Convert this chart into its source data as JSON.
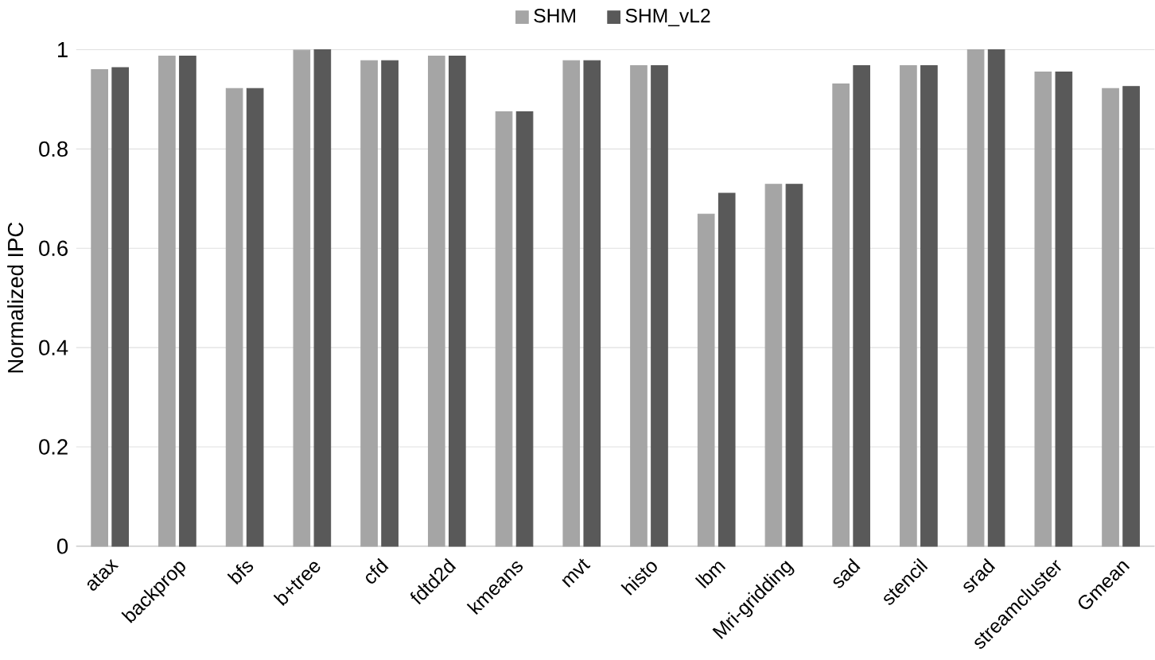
{
  "chart_data": {
    "type": "bar",
    "ylabel": "Normalized IPC",
    "categories": [
      "atax",
      "backprop",
      "bfs",
      "b+tree",
      "cfd",
      "fdtd2d",
      "kmeans",
      "mvt",
      "histo",
      "lbm",
      "Mri-gridding",
      "sad",
      "stencil",
      "srad",
      "streamcluster",
      "Gmean"
    ],
    "series": [
      {
        "name": "SHM",
        "color": "#a5a5a5",
        "values": [
          0.96,
          0.987,
          0.922,
          0.999,
          0.978,
          0.987,
          0.875,
          0.978,
          0.968,
          0.669,
          0.729,
          0.931,
          0.968,
          1.0,
          0.955,
          0.922
        ]
      },
      {
        "name": "SHM_vL2",
        "color": "#595959",
        "values": [
          0.964,
          0.987,
          0.922,
          1.0,
          0.978,
          0.987,
          0.875,
          0.978,
          0.968,
          0.711,
          0.729,
          0.968,
          0.968,
          1.0,
          0.955,
          0.926
        ]
      }
    ],
    "ylim": [
      0,
      1
    ],
    "yticks": [
      0,
      0.2,
      0.4,
      0.6,
      0.8,
      1
    ],
    "grid": "y",
    "legend": "top"
  }
}
